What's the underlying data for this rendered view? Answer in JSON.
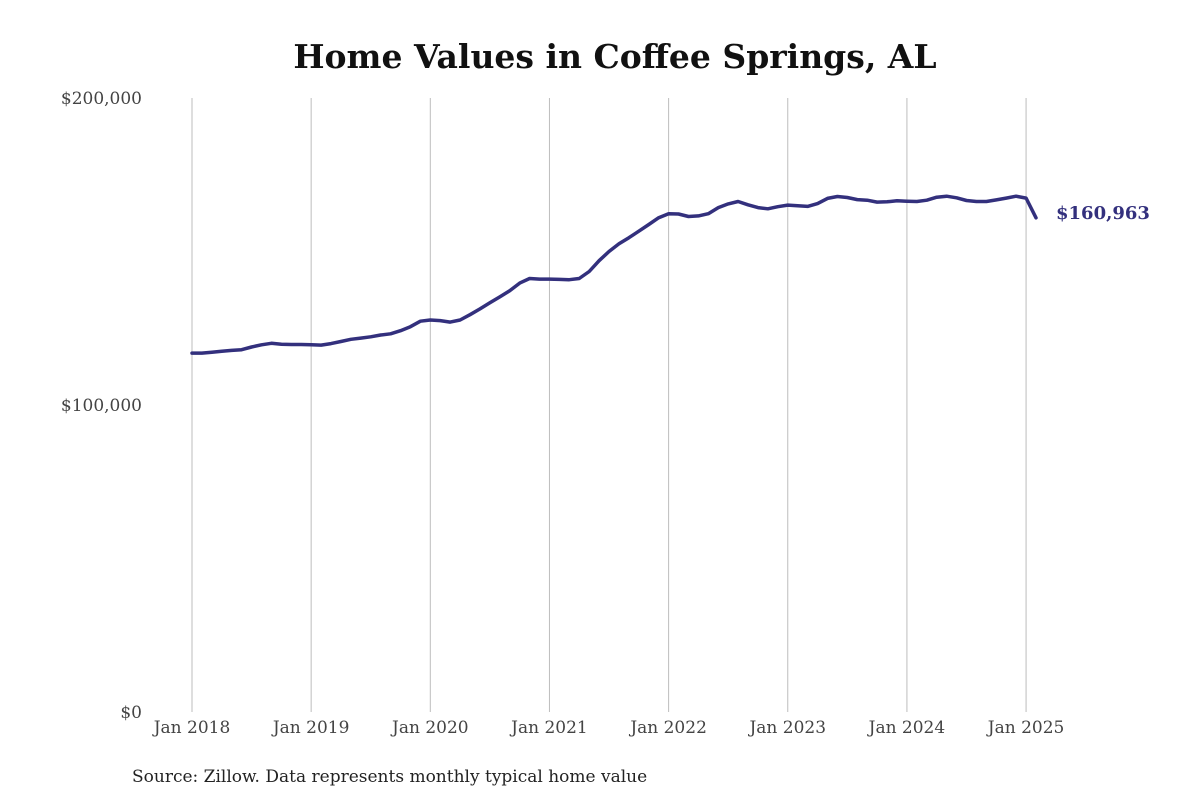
{
  "chart_data": {
    "type": "line",
    "title": "Home Values in Coffee Springs, AL",
    "source": "Source: Zillow. Data represents monthly typical home value",
    "xlabel": "",
    "ylabel": "",
    "ylim": [
      0,
      200000
    ],
    "yticks": [
      {
        "value": 0,
        "label": "$0"
      },
      {
        "value": 100000,
        "label": "$100,000"
      },
      {
        "value": 200000,
        "label": "$200,000"
      }
    ],
    "xlim": [
      2018.0,
      2025.0833
    ],
    "xticks": [
      {
        "value": 2018,
        "label": "Jan 2018"
      },
      {
        "value": 2019,
        "label": "Jan 2019"
      },
      {
        "value": 2020,
        "label": "Jan 2020"
      },
      {
        "value": 2021,
        "label": "Jan 2021"
      },
      {
        "value": 2022,
        "label": "Jan 2022"
      },
      {
        "value": 2023,
        "label": "Jan 2023"
      },
      {
        "value": 2024,
        "label": "Jan 2024"
      },
      {
        "value": 2025,
        "label": "Jan 2025"
      }
    ],
    "grid": "vertical",
    "series_color": "#33307d",
    "end_label": "$160,963",
    "series": [
      {
        "name": "Typical home value",
        "x_start": "Jan 2018",
        "frequency": "monthly",
        "values": [
          116900,
          116900,
          117200,
          117500,
          117800,
          118000,
          118900,
          119600,
          120100,
          119800,
          119700,
          119700,
          119600,
          119500,
          120000,
          120700,
          121400,
          121800,
          122200,
          122800,
          123200,
          124200,
          125500,
          127300,
          127700,
          127500,
          127000,
          127700,
          129400,
          131300,
          133300,
          135200,
          137200,
          139700,
          141200,
          141000,
          141000,
          140900,
          140800,
          141200,
          143500,
          147000,
          150000,
          152500,
          154500,
          156600,
          158800,
          161000,
          162300,
          162200,
          161400,
          161600,
          162300,
          164300,
          165500,
          166300,
          165200,
          164300,
          163900,
          164600,
          165100,
          164900,
          164700,
          165600,
          167300,
          167900,
          167600,
          166900,
          166700,
          166100,
          166200,
          166500,
          166400,
          166300,
          166700,
          167700,
          168000,
          167500,
          166600,
          166300,
          166300,
          166800,
          167400,
          168000,
          167400,
          160963
        ]
      }
    ]
  }
}
